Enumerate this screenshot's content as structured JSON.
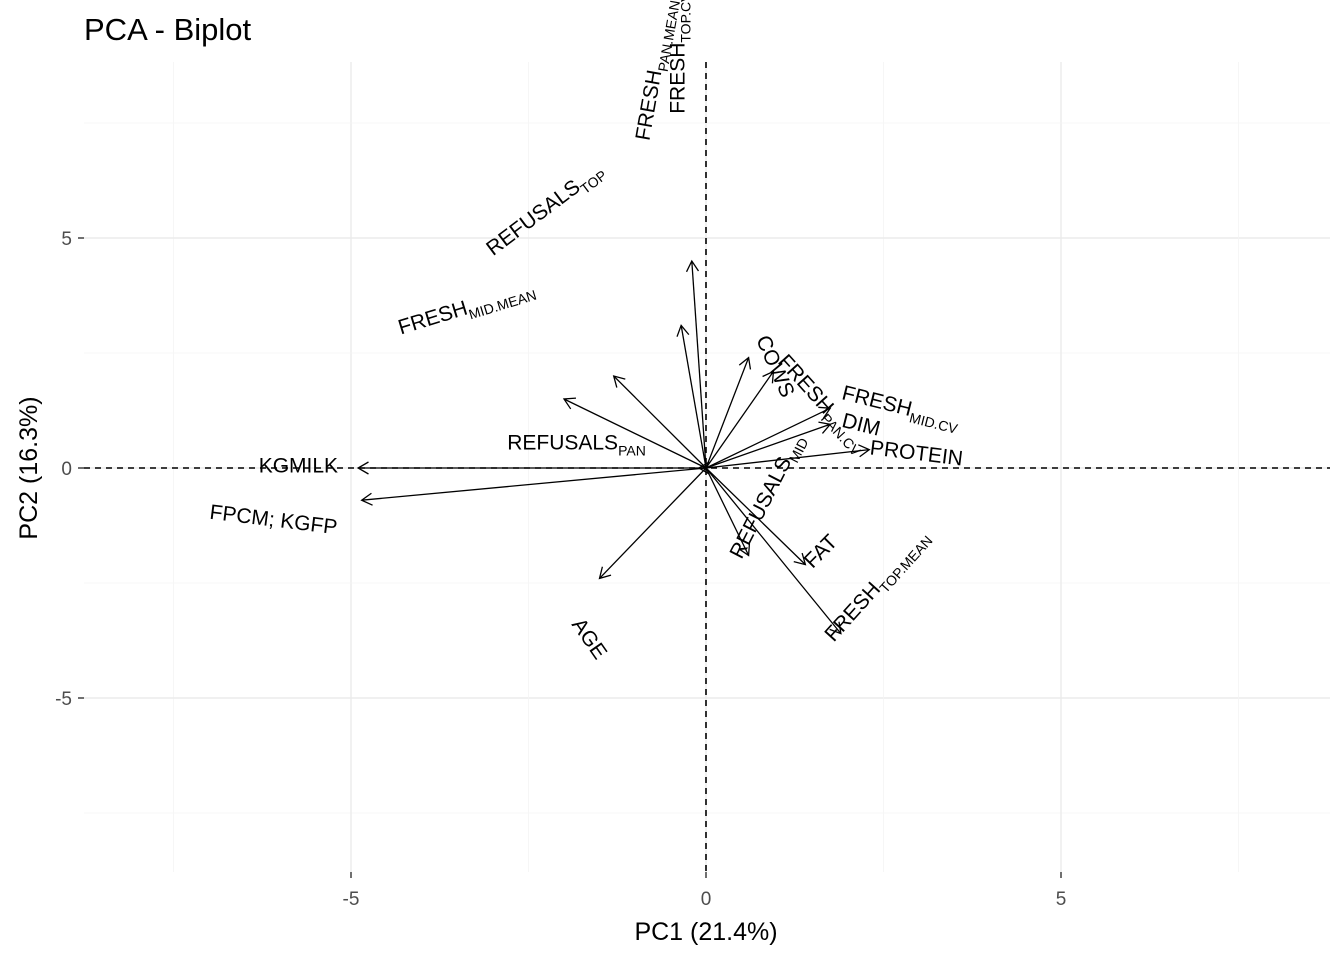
{
  "chart_data": {
    "type": "scatter",
    "subtype": "pca-biplot-loadings",
    "title": "PCA - Biplot",
    "xlabel": "PC1 (21.4%)",
    "ylabel": "PC2 (16.3%)",
    "xlim": [
      -8.8,
      8.8
    ],
    "ylim": [
      -8.8,
      8.8
    ],
    "x_ticks": [
      -5,
      0,
      5
    ],
    "y_ticks": [
      -5,
      0,
      5
    ],
    "grid": true,
    "zero_lines": true,
    "vectors": [
      {
        "base": "KGMILK",
        "sub": "",
        "x": -4.9,
        "y": 0.0,
        "angle": 0,
        "label_x": -6.3,
        "label_y": -0.1
      },
      {
        "base": "FPCM; KGFP",
        "sub": "",
        "x": -4.85,
        "y": -0.7,
        "angle": -7,
        "label_x": -7.0,
        "label_y": -1.1
      },
      {
        "base": "REFUSALS",
        "sub": "PAN",
        "x": -0.1,
        "y": 0.0,
        "angle": 0,
        "label_x": -2.8,
        "label_y": 0.4
      },
      {
        "base": "FRESH",
        "sub": "MID.MEAN",
        "x": -2.0,
        "y": 1.5,
        "angle": 17,
        "label_x": -4.3,
        "label_y": 2.9
      },
      {
        "base": "REFUSALS",
        "sub": "TOP",
        "x": -1.3,
        "y": 2.0,
        "angle": 37,
        "label_x": -3.0,
        "label_y": 4.6
      },
      {
        "base": "FRESH",
        "sub": "PAN.MEAN",
        "x": -0.35,
        "y": 3.1,
        "angle": 80,
        "label_x": -0.8,
        "label_y": 7.1
      },
      {
        "base": "FRESH",
        "sub": "TOP.CV",
        "x": -0.2,
        "y": 4.5,
        "angle": 90,
        "label_x": -0.3,
        "label_y": 7.7
      },
      {
        "base": "COWS",
        "sub": "",
        "x": 0.6,
        "y": 2.4,
        "angle": -66,
        "label_x": 0.7,
        "label_y": 2.8
      },
      {
        "base": "FRESH",
        "sub": "PAN.CV",
        "x": 0.95,
        "y": 2.1,
        "angle": -48,
        "label_x": 1.0,
        "label_y": 2.3
      },
      {
        "base": "FRESH",
        "sub": "MID.CV",
        "x": 1.75,
        "y": 1.3,
        "angle": -14,
        "label_x": 1.9,
        "label_y": 1.5
      },
      {
        "base": "DIM",
        "sub": "",
        "x": 1.75,
        "y": 0.95,
        "angle": -14,
        "label_x": 1.9,
        "label_y": 0.9
      },
      {
        "base": "PROTEIN",
        "sub": "",
        "x": 2.3,
        "y": 0.4,
        "angle": -7,
        "label_x": 2.3,
        "label_y": 0.3
      },
      {
        "base": "AGE",
        "sub": "",
        "x": -1.5,
        "y": -2.4,
        "angle": -55,
        "label_x": -1.9,
        "label_y": -3.4
      },
      {
        "base": "REFUSALS",
        "sub": "MID",
        "x": 0.6,
        "y": -1.9,
        "angle": 63,
        "label_x": 0.5,
        "label_y": -2.0
      },
      {
        "base": "FAT",
        "sub": "",
        "x": 1.4,
        "y": -2.1,
        "angle": 45,
        "label_x": 1.5,
        "label_y": -2.2
      },
      {
        "base": "FRESH",
        "sub": "TOP.MEAN",
        "x": 1.9,
        "y": -3.6,
        "angle": 48,
        "label_x": 1.8,
        "label_y": -3.8
      }
    ]
  }
}
